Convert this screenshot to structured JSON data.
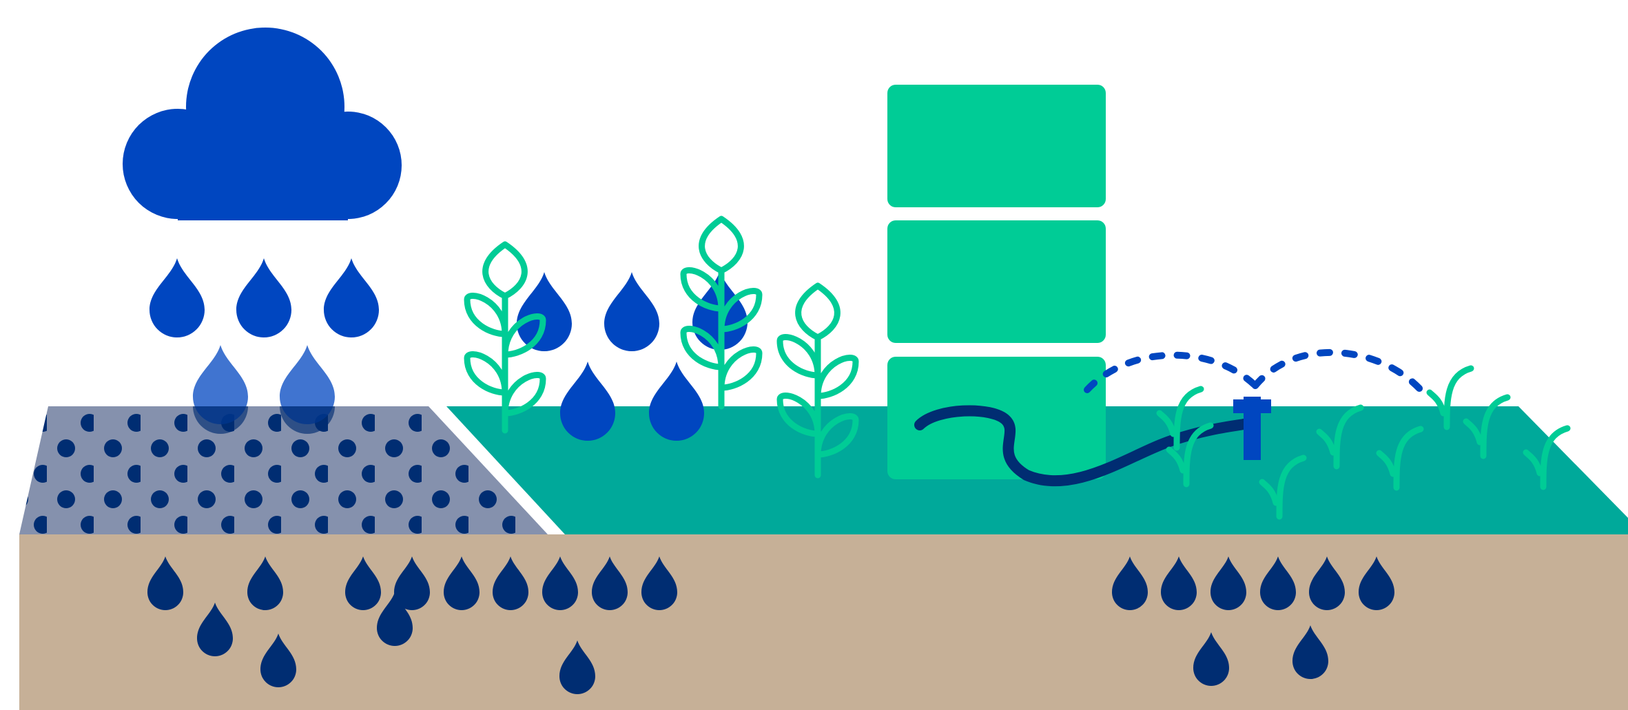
{
  "colors": {
    "background": "#ffffff",
    "soil": "#c6b097",
    "grass_layer": "#00a99a",
    "pavers": "#8591ad",
    "paver_dots": "#002d72",
    "cloud": "#0046c0",
    "rain_drop": "#0046c0",
    "ground_drop": "#002d72",
    "plant_outline": "#00cc96",
    "rain_barrel": "#00cc96",
    "hose": "#002d72",
    "sprinkler": "#0046c0",
    "spray_dash": "#0046c0",
    "seedling": "#00cc96"
  },
  "icons": {
    "cloud": "rain-cloud-icon",
    "rain_drop": "water-drop-icon",
    "ground_drop": "groundwater-drop-icon",
    "plant": "leafy-plant-icon",
    "barrel": "rain-barrel-icon",
    "hose": "garden-hose-icon",
    "sprinkler": "sprinkler-icon",
    "seedling": "seedling-icon"
  },
  "scene": {
    "rain_barrel_sections": 3,
    "plant_count": 3,
    "seedling_count": 8,
    "groundwater_drops_left": 13,
    "groundwater_drops_right": 8
  }
}
